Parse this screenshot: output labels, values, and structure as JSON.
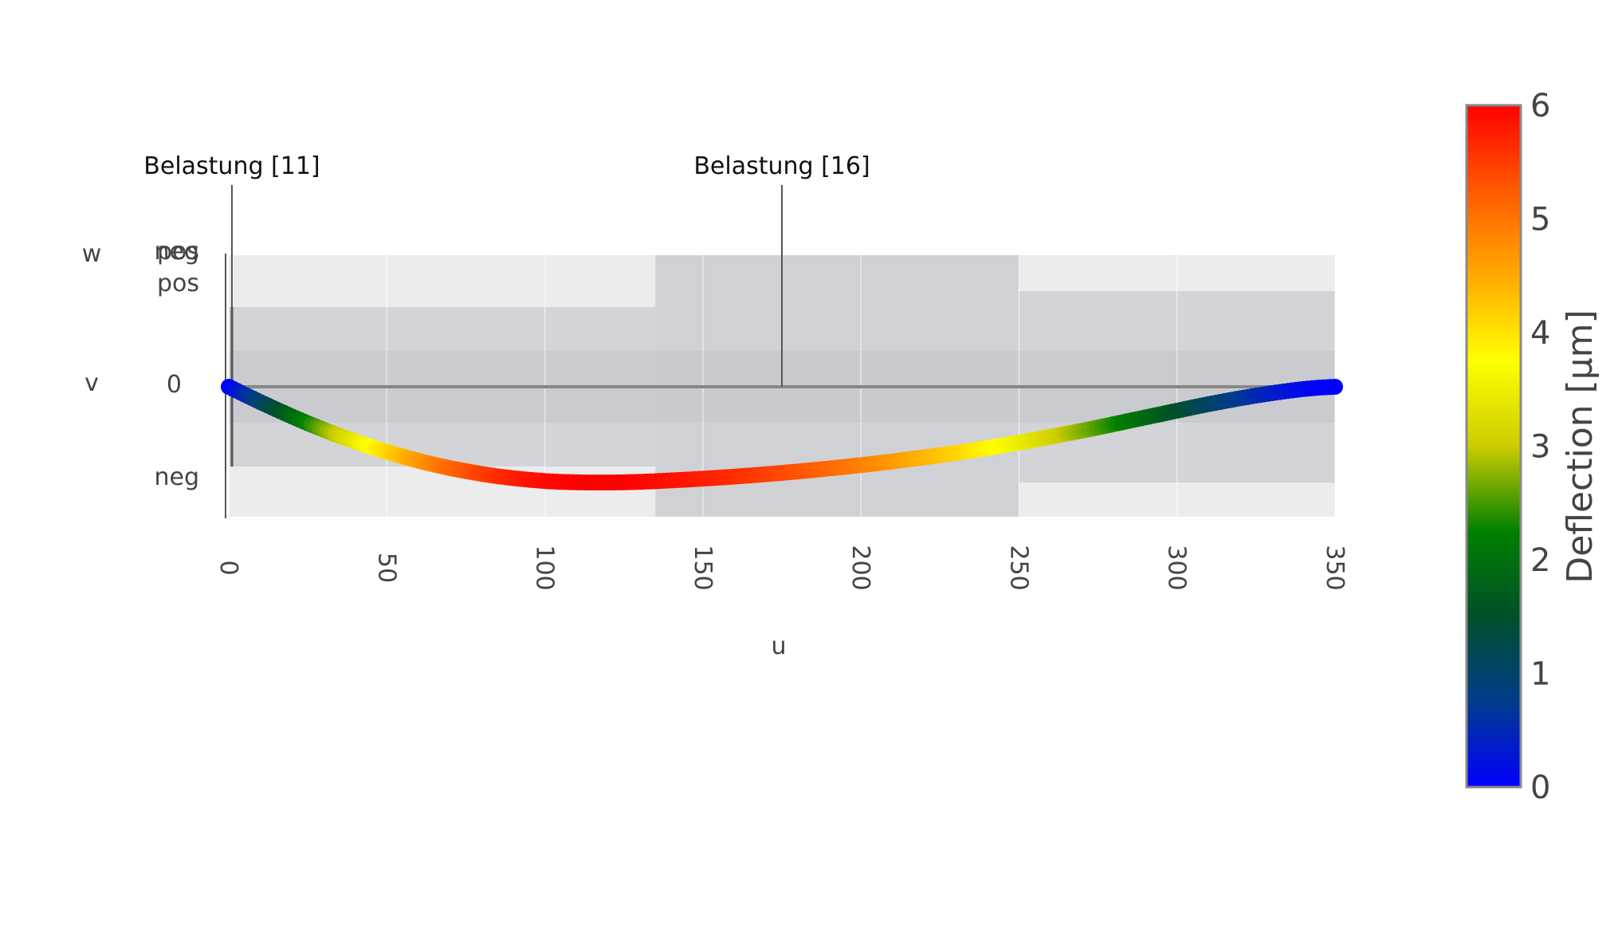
{
  "chart_data": {
    "type": "scatter",
    "title": "",
    "xlabel": "u",
    "x_range": [
      0,
      350
    ],
    "x_ticks": [
      "0",
      "50",
      "100",
      "150",
      "200",
      "250",
      "300",
      "350"
    ],
    "x_tick_values": [
      0,
      50,
      100,
      150,
      200,
      250,
      300,
      350
    ],
    "x_tick_rotation": "vertical",
    "y_axes": [
      {
        "label": "w",
        "ticks": [
          "neg",
          "pos"
        ]
      },
      {
        "label": "v",
        "ticks": [
          "pos",
          "0",
          "neg"
        ]
      }
    ],
    "support_segments": [
      {
        "x_start": 0,
        "x_end": 135,
        "shade": "light"
      },
      {
        "x_start": 135,
        "x_end": 250,
        "shade": "dark"
      },
      {
        "x_start": 250,
        "x_end": 350,
        "shade": "light"
      }
    ],
    "annotations": [
      {
        "text": "Belastung [11]",
        "x": 1
      },
      {
        "text": "Belastung [16]",
        "x": 175
      }
    ],
    "series": [
      {
        "x": [
          0,
          5,
          10,
          15,
          20,
          25,
          30,
          35,
          40,
          45,
          50,
          55,
          60,
          65,
          70,
          75,
          80,
          85,
          90,
          95,
          100,
          105,
          110,
          115,
          120,
          125,
          130,
          135,
          140,
          145,
          150,
          155,
          160,
          165,
          170,
          175,
          180,
          185,
          190,
          195,
          200,
          205,
          210,
          215,
          220,
          225,
          230,
          235,
          240,
          245,
          250,
          255,
          260,
          265,
          270,
          275,
          280,
          285,
          290,
          295,
          300,
          305,
          310,
          315,
          320,
          325,
          330,
          335,
          340,
          345,
          350
        ],
        "y": [
          0,
          0.49,
          0.96,
          1.42,
          1.86,
          2.29,
          2.69,
          3.07,
          3.43,
          3.77,
          4.08,
          4.37,
          4.64,
          4.88,
          5.1,
          5.29,
          5.46,
          5.61,
          5.73,
          5.83,
          5.91,
          5.96,
          5.99,
          6.0,
          6.0,
          5.99,
          5.96,
          5.92,
          5.87,
          5.82,
          5.76,
          5.7,
          5.63,
          5.56,
          5.48,
          5.4,
          5.31,
          5.22,
          5.12,
          5.02,
          4.91,
          4.8,
          4.68,
          4.55,
          4.42,
          4.29,
          4.15,
          4.0,
          3.84,
          3.67,
          3.5,
          3.32,
          3.13,
          2.94,
          2.75,
          2.55,
          2.34,
          2.13,
          1.92,
          1.71,
          1.5,
          1.29,
          1.09,
          0.9,
          0.72,
          0.55,
          0.4,
          0.26,
          0.14,
          0.05,
          0
        ]
      }
    ],
    "colorbar": {
      "title": "Deflection [µm]",
      "min": 0,
      "max": 6,
      "ticks": [
        "0",
        "1",
        "2",
        "3",
        "4",
        "5",
        "6"
      ],
      "tick_values": [
        0,
        1,
        2,
        3,
        4,
        5,
        6
      ],
      "colorscale": [
        "#0000ff",
        "#003c8c",
        "#005028",
        "#008000",
        "#cccc00",
        "#ffff00",
        "#ffaa00",
        "#ff5a00",
        "#ff0000"
      ]
    }
  }
}
